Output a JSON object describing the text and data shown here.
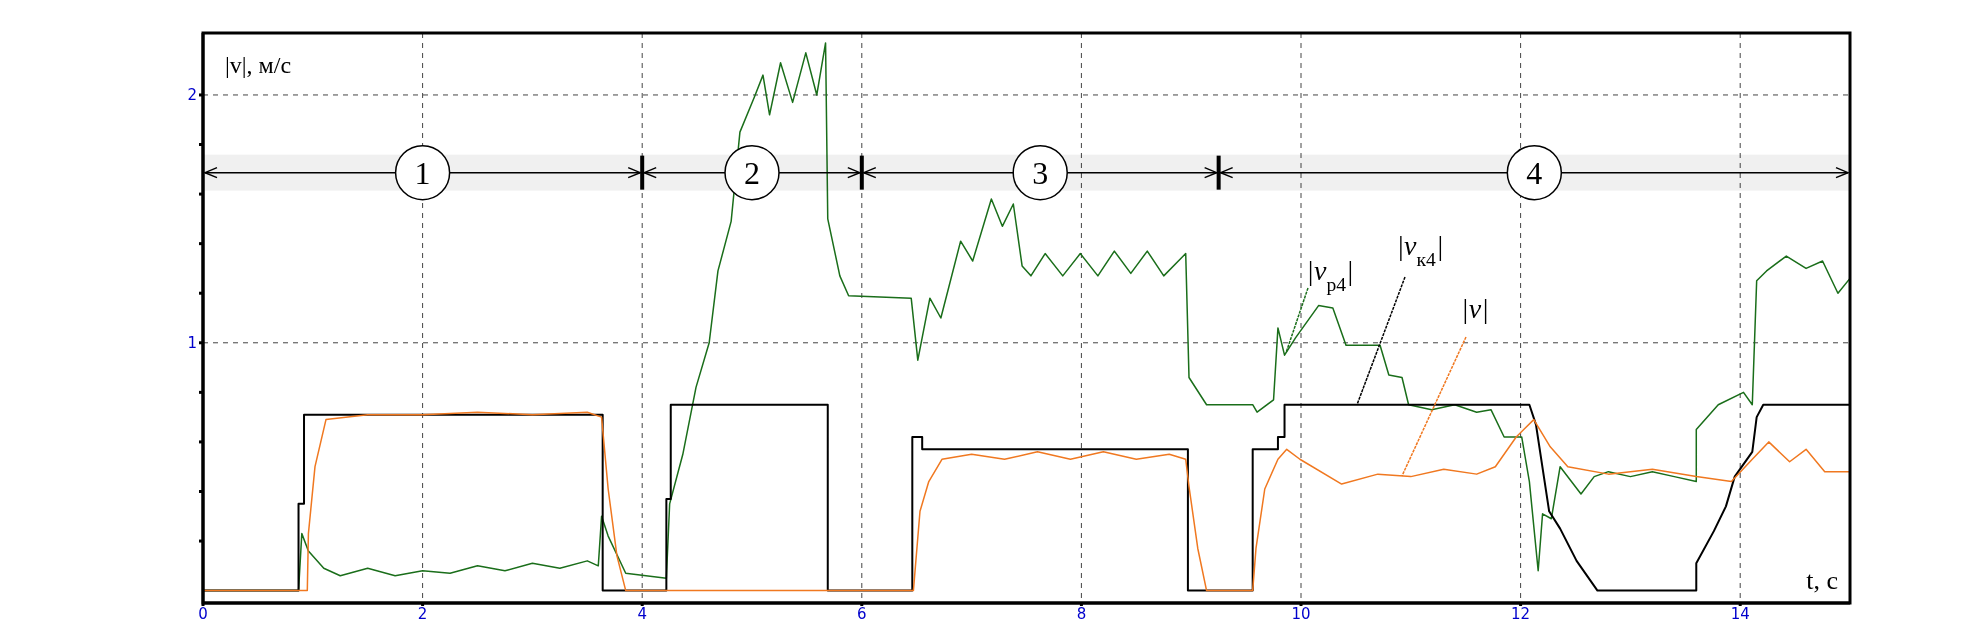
{
  "chart_data": {
    "type": "line",
    "xlabel": "t, с",
    "ylabel": "|v|, м/с",
    "xlim": [
      0,
      15
    ],
    "xticks": [
      0,
      2,
      4,
      6,
      8,
      10,
      12,
      14
    ],
    "ylim": [
      -0.05,
      2.25
    ],
    "yticks": [
      {
        "value": 0.2,
        "label": null
      },
      {
        "value": 0.4,
        "label": null
      },
      {
        "value": 0.6,
        "label": null
      },
      {
        "value": 0.8,
        "label": null
      },
      1,
      {
        "value": 1.2,
        "label": null
      },
      {
        "value": 1.4,
        "label": null
      },
      {
        "value": 1.6,
        "label": null
      },
      {
        "value": 1.8,
        "label": null
      },
      2
    ],
    "grid": true,
    "bands": [
      {
        "axis": "x",
        "from": 0,
        "to": 4,
        "label": "1"
      },
      {
        "axis": "x",
        "from": 4,
        "to": 6,
        "label": "2"
      },
      {
        "axis": "x",
        "from": 6,
        "to": 9.25,
        "label": "3"
      },
      {
        "axis": "x",
        "from": 9.25,
        "to": 15,
        "label": "4"
      }
    ],
    "series": [
      {
        "name": "|v$_{р4}$|",
        "color": "#1a6e1a",
        "x": [
          0,
          0.87,
          0.9,
          0.96,
          1.1,
          1.25,
          1.5,
          1.75,
          2.0,
          2.25,
          2.5,
          2.75,
          3.0,
          3.25,
          3.5,
          3.6,
          3.63,
          3.69,
          3.85,
          4.22,
          4.25,
          4.37,
          4.49,
          4.61,
          4.69,
          4.81,
          4.89,
          5.02,
          5.1,
          5.16,
          5.26,
          5.37,
          5.49,
          5.59,
          5.67,
          5.69,
          5.8,
          5.88,
          6.45,
          6.51,
          6.62,
          6.72,
          6.9,
          7.01,
          7.18,
          7.28,
          7.38,
          7.46,
          7.54,
          7.67,
          7.83,
          7.99,
          8.15,
          8.3,
          8.45,
          8.6,
          8.75,
          8.95,
          8.98,
          9.14,
          9.56,
          9.6,
          9.75,
          9.79,
          9.85,
          9.95,
          10.16,
          10.29,
          10.41,
          10.57,
          10.72,
          10.8,
          10.92,
          10.98,
          11.19,
          11.4,
          11.6,
          11.73,
          11.85,
          12.01,
          12.08,
          12.16,
          12.2,
          12.28,
          12.36,
          12.55,
          12.67,
          12.8,
          13.0,
          13.2,
          13.4,
          13.6,
          13.6,
          13.8,
          14.03,
          14.11,
          14.15,
          14.24,
          14.42,
          14.6,
          14.75,
          14.89,
          15
        ],
        "values": [
          0,
          0,
          0.23,
          0.16,
          0.09,
          0.06,
          0.09,
          0.06,
          0.08,
          0.07,
          0.1,
          0.08,
          0.11,
          0.09,
          0.12,
          0.1,
          0.3,
          0.22,
          0.07,
          0.05,
          0.35,
          0.55,
          0.82,
          1.0,
          1.29,
          1.49,
          1.85,
          1.99,
          2.08,
          1.92,
          2.13,
          1.97,
          2.17,
          2.0,
          2.21,
          1.5,
          1.27,
          1.19,
          1.18,
          0.93,
          1.18,
          1.1,
          1.41,
          1.33,
          1.58,
          1.47,
          1.56,
          1.31,
          1.27,
          1.36,
          1.27,
          1.36,
          1.27,
          1.37,
          1.28,
          1.37,
          1.27,
          1.36,
          0.86,
          0.75,
          0.75,
          0.72,
          0.77,
          1.06,
          0.95,
          1.02,
          1.15,
          1.14,
          0.99,
          0.99,
          0.99,
          0.87,
          0.86,
          0.75,
          0.73,
          0.75,
          0.72,
          0.73,
          0.62,
          0.62,
          0.44,
          0.08,
          0.31,
          0.29,
          0.5,
          0.39,
          0.46,
          0.48,
          0.46,
          0.48,
          0.46,
          0.44,
          0.65,
          0.75,
          0.8,
          0.75,
          1.25,
          1.29,
          1.35,
          1.3,
          1.33,
          1.2,
          1.26
        ]
      },
      {
        "name": "|v$_{к4}$|",
        "color": "#000000",
        "x": [
          0,
          0.87,
          0.87,
          0.92,
          0.92,
          3.64,
          3.64,
          4.22,
          4.22,
          4.26,
          4.26,
          5.69,
          5.69,
          6.46,
          6.46,
          6.55,
          6.55,
          8.97,
          8.97,
          9.56,
          9.56,
          9.79,
          9.79,
          9.85,
          9.85,
          12.08,
          12.14,
          12.26,
          12.36,
          12.51,
          12.7,
          13.6,
          13.6,
          13.76,
          13.87,
          13.95,
          14.11,
          14.15,
          14.21,
          15
        ],
        "values": [
          0,
          0,
          0.35,
          0.35,
          0.71,
          0.71,
          0,
          0,
          0.37,
          0.37,
          0.75,
          0.75,
          0,
          0,
          0.62,
          0.62,
          0.57,
          0.57,
          0,
          0,
          0.57,
          0.57,
          0.62,
          0.62,
          0.75,
          0.75,
          0.67,
          0.32,
          0.25,
          0.12,
          0,
          0,
          0.11,
          0.24,
          0.34,
          0.46,
          0.56,
          0.7,
          0.75,
          0.75
        ]
      },
      {
        "name": "|v|",
        "color": "#f07820",
        "x": [
          0,
          0.95,
          0.96,
          1.02,
          1.12,
          1.5,
          2.0,
          2.5,
          3.0,
          3.5,
          3.63,
          3.69,
          3.77,
          3.85,
          6.47,
          6.53,
          6.61,
          6.73,
          7.0,
          7.3,
          7.6,
          7.9,
          8.2,
          8.5,
          8.8,
          8.95,
          8.98,
          9.06,
          9.14,
          9.56,
          9.59,
          9.67,
          9.79,
          9.87,
          9.99,
          10.37,
          10.7,
          11.0,
          11.3,
          11.6,
          11.77,
          11.96,
          12.12,
          12.27,
          12.43,
          12.8,
          13.2,
          13.6,
          13.92,
          14.11,
          14.26,
          14.45,
          14.6,
          14.77,
          15
        ],
        "values": [
          0,
          0,
          0.23,
          0.5,
          0.69,
          0.71,
          0.71,
          0.72,
          0.71,
          0.72,
          0.7,
          0.41,
          0.14,
          0,
          0,
          0.32,
          0.44,
          0.53,
          0.55,
          0.53,
          0.56,
          0.53,
          0.56,
          0.53,
          0.55,
          0.53,
          0.42,
          0.17,
          0,
          0,
          0.17,
          0.41,
          0.53,
          0.57,
          0.53,
          0.43,
          0.47,
          0.46,
          0.49,
          0.47,
          0.5,
          0.62,
          0.69,
          0.58,
          0.5,
          0.47,
          0.49,
          0.46,
          0.44,
          0.53,
          0.6,
          0.52,
          0.57,
          0.48,
          0.48
        ]
      }
    ]
  }
}
